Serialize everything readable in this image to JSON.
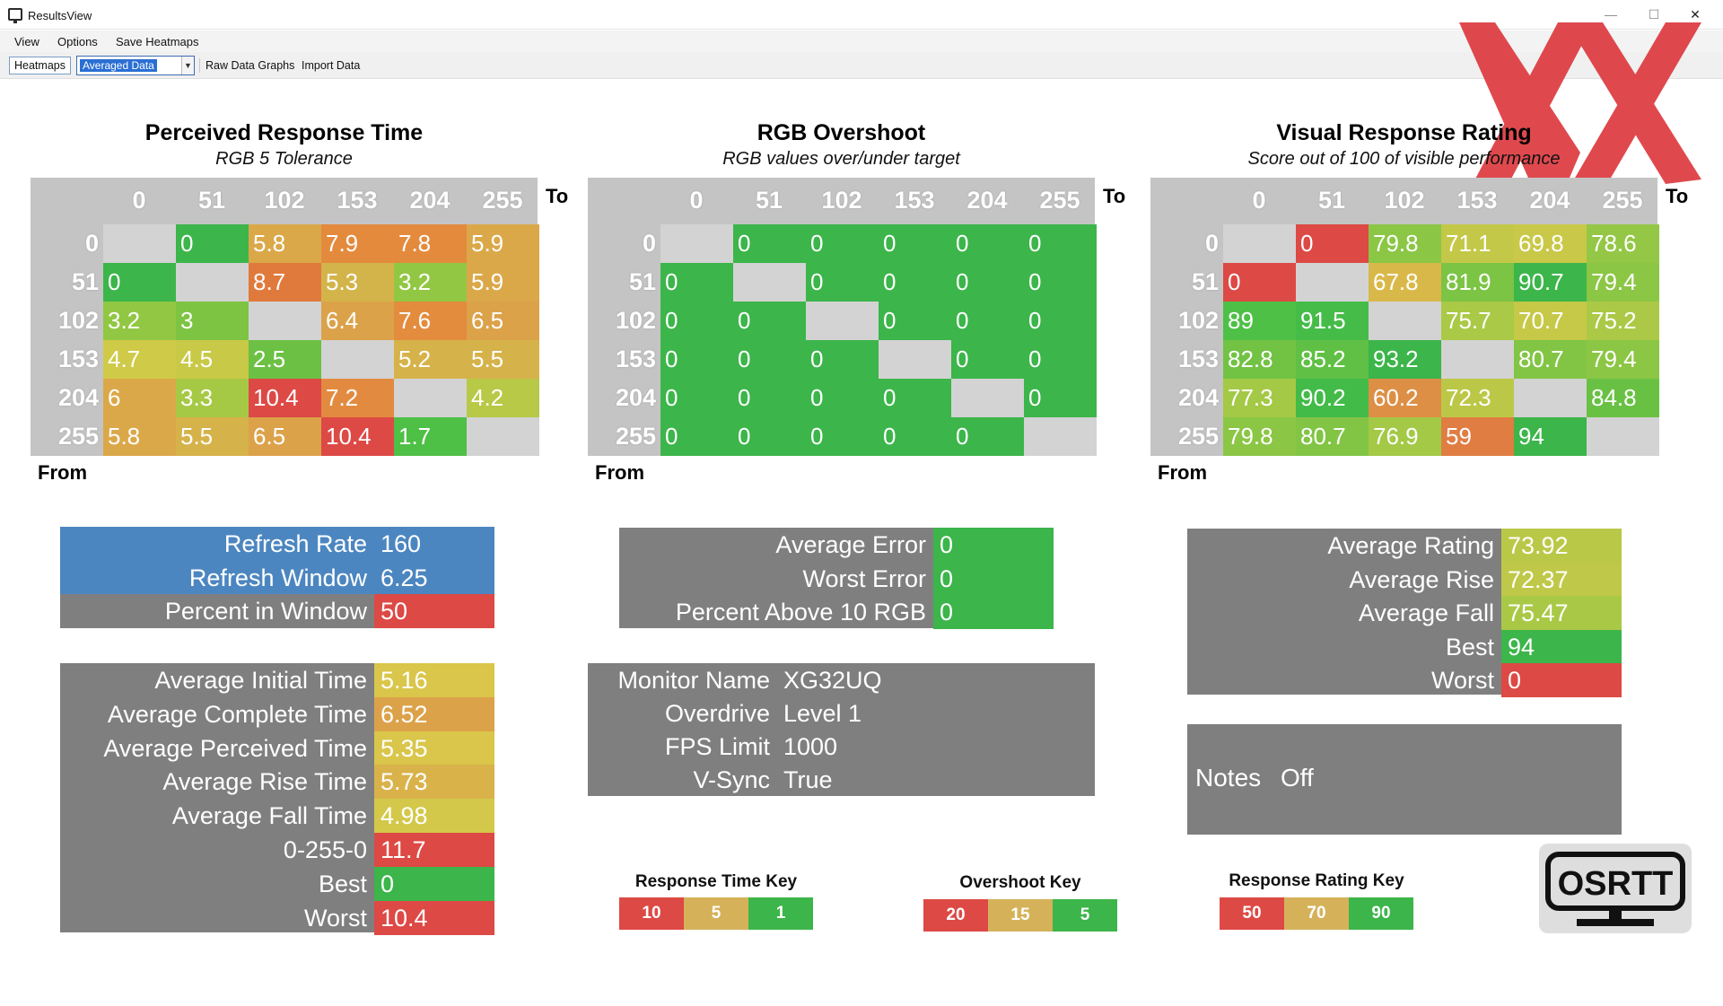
{
  "window": {
    "title": "ResultsView",
    "minimize": "—",
    "maximize": "☐",
    "close": "✕"
  },
  "menu": {
    "items": [
      "View",
      "Options",
      "Save Heatmaps"
    ]
  },
  "toolbar": {
    "heatmaps": "Heatmaps",
    "combo_value": "Averaged Data",
    "raw": "Raw Data Graphs",
    "import": "Import Data"
  },
  "heatmaps": [
    {
      "title": "Perceived Response Time",
      "subtitle": "RGB 5 Tolerance",
      "to": "To",
      "from": "From",
      "cols": [
        "0",
        "51",
        "102",
        "153",
        "204",
        "255"
      ],
      "rows": [
        "0",
        "51",
        "102",
        "153",
        "204",
        "255"
      ],
      "cells": [
        [
          "",
          "0",
          "5.8",
          "7.9",
          "7.8",
          "5.9"
        ],
        [
          "0",
          "",
          "8.7",
          "5.3",
          "3.2",
          "5.9"
        ],
        [
          "3.2",
          "3",
          "",
          "6.4",
          "7.6",
          "6.5"
        ],
        [
          "4.7",
          "4.5",
          "2.5",
          "",
          "5.2",
          "5.5"
        ],
        [
          "6",
          "3.3",
          "10.4",
          "7.2",
          "",
          "4.2"
        ],
        [
          "5.8",
          "5.5",
          "6.5",
          "10.4",
          "1.7",
          ""
        ]
      ],
      "colors": [
        [
          "#d3d3d3",
          "#3cb54a",
          "#dba849",
          "#e48a3d",
          "#e48a3d",
          "#dba849"
        ],
        [
          "#3cb54a",
          "#d3d3d3",
          "#e07a3c",
          "#d3b44a",
          "#92c743",
          "#dba849"
        ],
        [
          "#92c743",
          "#7dc442",
          "#d3d3d3",
          "#dca24a",
          "#e38c3e",
          "#dca24a"
        ],
        [
          "#cfca48",
          "#c8c947",
          "#6cc043",
          "#d3d3d3",
          "#d6b24a",
          "#d6b24a"
        ],
        [
          "#dba849",
          "#a6c945",
          "#dd4945",
          "#e28b40",
          "#d3d3d3",
          "#b7c946"
        ],
        [
          "#dba849",
          "#d6b24a",
          "#dca24a",
          "#dd4945",
          "#4ec046",
          "#d3d3d3"
        ]
      ]
    },
    {
      "title": "RGB Overshoot",
      "subtitle": "RGB values over/under target",
      "to": "To",
      "from": "From",
      "cols": [
        "0",
        "51",
        "102",
        "153",
        "204",
        "255"
      ],
      "rows": [
        "0",
        "51",
        "102",
        "153",
        "204",
        "255"
      ],
      "cells": [
        [
          "",
          "0",
          "0",
          "0",
          "0",
          "0"
        ],
        [
          "0",
          "",
          "0",
          "0",
          "0",
          "0"
        ],
        [
          "0",
          "0",
          "",
          "0",
          "0",
          "0"
        ],
        [
          "0",
          "0",
          "0",
          "",
          "0",
          "0"
        ],
        [
          "0",
          "0",
          "0",
          "0",
          "",
          "0"
        ],
        [
          "0",
          "0",
          "0",
          "0",
          "0",
          ""
        ]
      ],
      "colors": [
        [
          "#d3d3d3",
          "#3cb54a",
          "#3cb54a",
          "#3cb54a",
          "#3cb54a",
          "#3cb54a"
        ],
        [
          "#3cb54a",
          "#d3d3d3",
          "#3cb54a",
          "#3cb54a",
          "#3cb54a",
          "#3cb54a"
        ],
        [
          "#3cb54a",
          "#3cb54a",
          "#d3d3d3",
          "#3cb54a",
          "#3cb54a",
          "#3cb54a"
        ],
        [
          "#3cb54a",
          "#3cb54a",
          "#3cb54a",
          "#d3d3d3",
          "#3cb54a",
          "#3cb54a"
        ],
        [
          "#3cb54a",
          "#3cb54a",
          "#3cb54a",
          "#3cb54a",
          "#d3d3d3",
          "#3cb54a"
        ],
        [
          "#3cb54a",
          "#3cb54a",
          "#3cb54a",
          "#3cb54a",
          "#3cb54a",
          "#d3d3d3"
        ]
      ]
    },
    {
      "title": "Visual Response Rating",
      "subtitle": "Score out of 100 of visible performance",
      "to": "To",
      "from": "From",
      "cols": [
        "0",
        "51",
        "102",
        "153",
        "204",
        "255"
      ],
      "rows": [
        "0",
        "51",
        "102",
        "153",
        "204",
        "255"
      ],
      "cells": [
        [
          "",
          "0",
          "79.8",
          "71.1",
          "69.8",
          "78.6"
        ],
        [
          "0",
          "",
          "67.8",
          "81.9",
          "90.7",
          "79.4"
        ],
        [
          "89",
          "91.5",
          "",
          "75.7",
          "70.7",
          "75.2"
        ],
        [
          "82.8",
          "85.2",
          "93.2",
          "",
          "80.7",
          "79.4"
        ],
        [
          "77.3",
          "90.2",
          "60.2",
          "72.3",
          "",
          "84.8"
        ],
        [
          "79.8",
          "80.7",
          "76.9",
          "59",
          "94",
          ""
        ]
      ],
      "colors": [
        [
          "#d3d3d3",
          "#dd4945",
          "#8bc645",
          "#c3c848",
          "#c9c848",
          "#94c745"
        ],
        [
          "#dd4945",
          "#d3d3d3",
          "#d9b84a",
          "#7cc444",
          "#3cb54a",
          "#8cc645"
        ],
        [
          "#4ec046",
          "#45bc48",
          "#d3d3d3",
          "#aac946",
          "#c6c848",
          "#abc946"
        ],
        [
          "#72c244",
          "#60c045",
          "#3cb54a",
          "#d3d3d3",
          "#82c545",
          "#8cc645"
        ],
        [
          "#a4c946",
          "#42bb48",
          "#dd8f45",
          "#bbc847",
          "#d3d3d3",
          "#69c144"
        ],
        [
          "#8bc645",
          "#82c545",
          "#a3c946",
          "#e07d42",
          "#3cb54a",
          "#d3d3d3"
        ]
      ]
    }
  ],
  "refresh_panel": {
    "rows": [
      {
        "label": "Refresh Rate",
        "value": "160",
        "bg": "#4c86c0",
        "vbg": "#4c86c0"
      },
      {
        "label": "Refresh Window",
        "value": "6.25",
        "bg": "#4c86c0",
        "vbg": "#4c86c0"
      },
      {
        "label": "Percent in Window",
        "value": "50",
        "bg": "#7f7f7f",
        "vbg": "#dd4945"
      }
    ]
  },
  "time_panel": {
    "rows": [
      {
        "label": "Average Initial Time",
        "value": "5.16",
        "vbg": "#d9c64a"
      },
      {
        "label": "Average Complete Time",
        "value": "6.52",
        "vbg": "#dca24a"
      },
      {
        "label": "Average Perceived Time",
        "value": "5.35",
        "vbg": "#d9c64a"
      },
      {
        "label": "Average Rise Time",
        "value": "5.73",
        "vbg": "#d9b24a"
      },
      {
        "label": "Average Fall Time",
        "value": "4.98",
        "vbg": "#d3c84a"
      },
      {
        "label": "0-255-0",
        "value": "11.7",
        "vbg": "#dd4945"
      },
      {
        "label": "Best",
        "value": "0",
        "vbg": "#3cb54a"
      },
      {
        "label": "Worst",
        "value": "10.4",
        "vbg": "#dd4945"
      }
    ]
  },
  "error_panel": {
    "rows": [
      {
        "label": "Average Error",
        "value": "0",
        "vbg": "#3cb54a"
      },
      {
        "label": "Worst Error",
        "value": "0",
        "vbg": "#3cb54a"
      },
      {
        "label": "Percent Above 10 RGB",
        "value": "0",
        "vbg": "#3cb54a"
      }
    ]
  },
  "monitor_panel": {
    "rows": [
      {
        "label": "Monitor Name",
        "value": "XG32UQ"
      },
      {
        "label": "Overdrive",
        "value": "Level 1"
      },
      {
        "label": "FPS Limit",
        "value": "1000"
      },
      {
        "label": "V-Sync",
        "value": "True"
      }
    ]
  },
  "rating_panel": {
    "rows": [
      {
        "label": "Average Rating",
        "value": "73.92",
        "vbg": "#b9c847"
      },
      {
        "label": "Average Rise",
        "value": "72.37",
        "vbg": "#bfc848"
      },
      {
        "label": "Average Fall",
        "value": "75.47",
        "vbg": "#a9c946"
      },
      {
        "label": "Best",
        "value": "94",
        "vbg": "#3cb54a"
      },
      {
        "label": "Worst",
        "value": "0",
        "vbg": "#dd4945"
      }
    ]
  },
  "notes": {
    "label": "Notes",
    "value": "Off"
  },
  "keys": [
    {
      "title": "Response Time Key",
      "values": [
        "10",
        "5",
        "1"
      ]
    },
    {
      "title": "Overshoot Key",
      "values": [
        "20",
        "15",
        "5"
      ]
    },
    {
      "title": "Response Rating Key",
      "values": [
        "50",
        "70",
        "90"
      ]
    }
  ],
  "key_colors": [
    "#dd4945",
    "#d5b25a",
    "#3cb54a"
  ],
  "osrtt_logo": "OSRTT"
}
